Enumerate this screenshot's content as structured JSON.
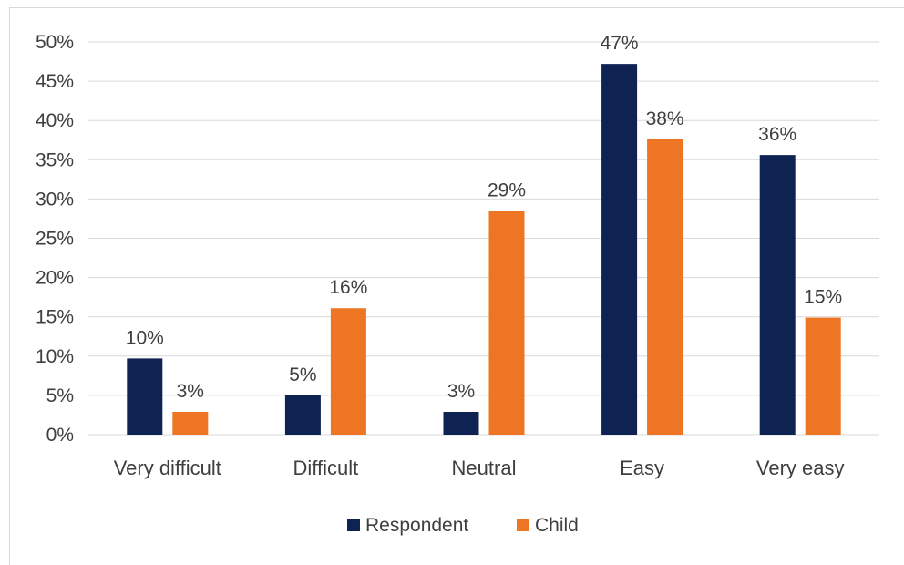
{
  "chart_data": {
    "type": "bar",
    "title": "",
    "xlabel": "",
    "ylabel": "",
    "categories": [
      "Very difficult",
      "Difficult",
      "Neutral",
      "Easy",
      "Very easy"
    ],
    "series": [
      {
        "name": "Respondent",
        "color": "#0e2352",
        "values": [
          9.7,
          5.0,
          2.9,
          47.2,
          35.6
        ],
        "labels": [
          "10%",
          "5%",
          "3%",
          "47%",
          "36%"
        ]
      },
      {
        "name": "Child",
        "color": "#ed7523",
        "values": [
          2.9,
          16.1,
          28.5,
          37.6,
          14.9
        ],
        "labels": [
          "3%",
          "16%",
          "29%",
          "38%",
          "15%"
        ]
      }
    ],
    "ylim": [
      0,
      50
    ],
    "yticks": [
      0,
      5,
      10,
      15,
      20,
      25,
      30,
      35,
      40,
      45,
      50
    ],
    "ytick_labels": [
      "0%",
      "5%",
      "10%",
      "15%",
      "20%",
      "25%",
      "30%",
      "35%",
      "40%",
      "45%",
      "50%"
    ],
    "grid": true,
    "legend": "bottom"
  }
}
